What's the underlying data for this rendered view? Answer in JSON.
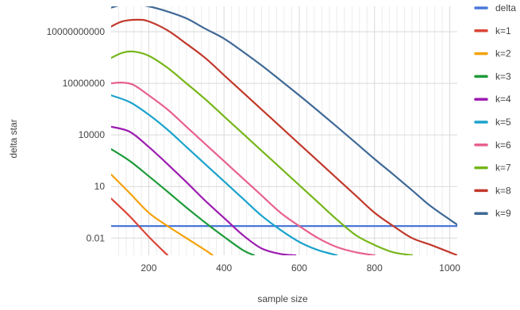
{
  "chart_data": {
    "type": "line",
    "title": "",
    "xlabel": "sample size",
    "ylabel": "delta star",
    "xlim": [
      100,
      1020
    ],
    "ylim": [
      0.001,
      300000000000
    ],
    "yscale": "log",
    "grid": true,
    "legend_position": "right",
    "x_ticks": [
      200,
      400,
      600,
      800,
      1000
    ],
    "x_tick_labels": [
      "200",
      "400",
      "600",
      "800",
      "1000"
    ],
    "y_ticks": [
      0.01,
      10,
      10000,
      10000000,
      10000000000
    ],
    "y_tick_labels": [
      "0.01",
      "10",
      "10000",
      "10000000",
      "10000000000"
    ],
    "series": [
      {
        "name": "delta",
        "color": "#4a78d8",
        "x": [
          100,
          1020
        ],
        "y": [
          0.05,
          0.05
        ]
      },
      {
        "name": "k=1",
        "color": "#db4437",
        "x": [
          100,
          150,
          200,
          250
        ],
        "y": [
          2.0,
          0.18,
          0.012,
          0.001
        ]
      },
      {
        "name": "k=2",
        "color": "#f4a20c",
        "x": [
          100,
          150,
          200,
          250,
          300,
          350,
          370
        ],
        "y": [
          50,
          4,
          0.3,
          0.05,
          0.01,
          0.002,
          0.001
        ]
      },
      {
        "name": "k=3",
        "color": "#1e9b3a",
        "x": [
          100,
          150,
          200,
          250,
          300,
          350,
          400,
          450,
          480
        ],
        "y": [
          1500,
          300,
          40,
          5,
          0.6,
          0.08,
          0.012,
          0.002,
          0.001
        ]
      },
      {
        "name": "k=4",
        "color": "#9c1cb0",
        "x": [
          100,
          150,
          200,
          250,
          300,
          350,
          400,
          450,
          500,
          550,
          590
        ],
        "y": [
          30000,
          15000,
          2000,
          200,
          18,
          1.5,
          0.15,
          0.015,
          0.0025,
          0.0012,
          0.001
        ]
      },
      {
        "name": "k=5",
        "color": "#1aa3cc",
        "x": [
          100,
          150,
          200,
          250,
          300,
          350,
          400,
          450,
          500,
          550,
          600,
          650,
          700
        ],
        "y": [
          2000000,
          800000,
          150000,
          20000,
          2000,
          200,
          20,
          2,
          0.2,
          0.03,
          0.006,
          0.002,
          0.001
        ]
      },
      {
        "name": "k=6",
        "color": "#e8618c",
        "x": [
          100,
          130,
          160,
          200,
          250,
          300,
          350,
          400,
          450,
          500,
          550,
          600,
          650,
          700,
          750,
          800
        ],
        "y": [
          10000000,
          11000000,
          8000000,
          2000000,
          300000,
          30000,
          3000,
          300,
          30,
          3,
          0.3,
          0.05,
          0.01,
          0.003,
          0.0015,
          0.001
        ]
      },
      {
        "name": "k=7",
        "color": "#76b61a",
        "x": [
          100,
          130,
          160,
          200,
          250,
          300,
          350,
          400,
          450,
          500,
          550,
          600,
          650,
          700,
          750,
          800,
          850,
          900
        ],
        "y": [
          300000000,
          600000000,
          700000000,
          400000000,
          80000000,
          10000000,
          1200000,
          120000,
          12000,
          1200,
          120,
          12,
          1.2,
          0.12,
          0.015,
          0.004,
          0.0015,
          0.001
        ]
      },
      {
        "name": "k=8",
        "color": "#c1392b",
        "x": [
          100,
          130,
          170,
          200,
          250,
          300,
          350,
          400,
          450,
          500,
          550,
          600,
          650,
          700,
          750,
          800,
          850,
          900,
          950,
          1020
        ],
        "y": [
          20000000000,
          40000000000,
          50000000000,
          40000000000,
          12000000000,
          2000000000,
          300000000,
          30000000,
          3000000,
          300000,
          30000,
          3000,
          300,
          30,
          3,
          0.3,
          0.05,
          0.01,
          0.004,
          0.001
        ]
      },
      {
        "name": "k=9",
        "color": "#3f6996",
        "x": [
          100,
          130,
          160,
          200,
          250,
          300,
          350,
          400,
          450,
          500,
          550,
          600,
          650,
          700,
          750,
          800,
          850,
          900,
          950,
          1020
        ],
        "y": [
          250000000000,
          380000000000,
          400000000000,
          300000000000,
          150000000000,
          60000000000,
          15000000000,
          4000000000,
          700000000,
          110000000,
          15000000,
          2000000,
          250000,
          30000,
          3500,
          400,
          50,
          6,
          0.7,
          0.06
        ]
      }
    ]
  }
}
